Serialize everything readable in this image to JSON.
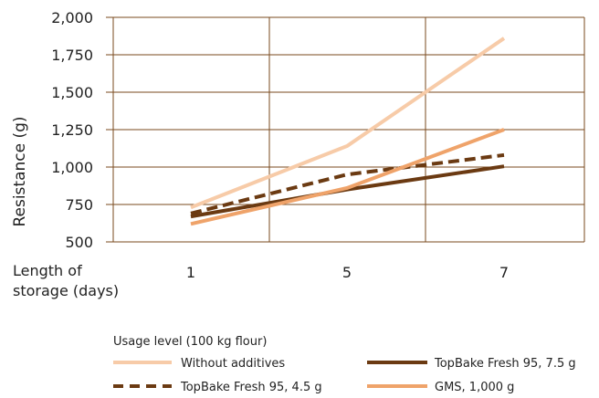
{
  "chart_data": {
    "type": "line",
    "ylabel": "Resistance (g)",
    "xlabel": "Length of storage (days)",
    "xlabel_lines": [
      "Length of",
      "storage (days)"
    ],
    "x": [
      1,
      5,
      7
    ],
    "xtick_labels": [
      "1",
      "5",
      "7"
    ],
    "ylim": [
      500,
      2000
    ],
    "yticks": [
      500,
      750,
      1000,
      1250,
      1500,
      1750,
      2000
    ],
    "ytick_labels": [
      "500",
      "750",
      "1,000",
      "1,250",
      "1,500",
      "1,750",
      "2,000"
    ],
    "grid": true,
    "legend_title": "Usage level (100 kg flour)",
    "legend_position": "bottom",
    "series": [
      {
        "name": "Without additives",
        "color": "#f7cba8",
        "dash": "solid",
        "values": [
          730,
          1140,
          1860
        ]
      },
      {
        "name": "TopBake Fresh 95, 7.5 g",
        "color": "#6b3a12",
        "dash": "solid",
        "values": [
          670,
          850,
          1005
        ]
      },
      {
        "name": "TopBake Fresh 95, 4.5 g",
        "color": "#6b3a12",
        "dash": "dashed",
        "values": [
          690,
          950,
          1080
        ]
      },
      {
        "name": "GMS, 1,000 g",
        "color": "#efa36a",
        "dash": "solid",
        "values": [
          620,
          860,
          1250
        ]
      }
    ]
  }
}
